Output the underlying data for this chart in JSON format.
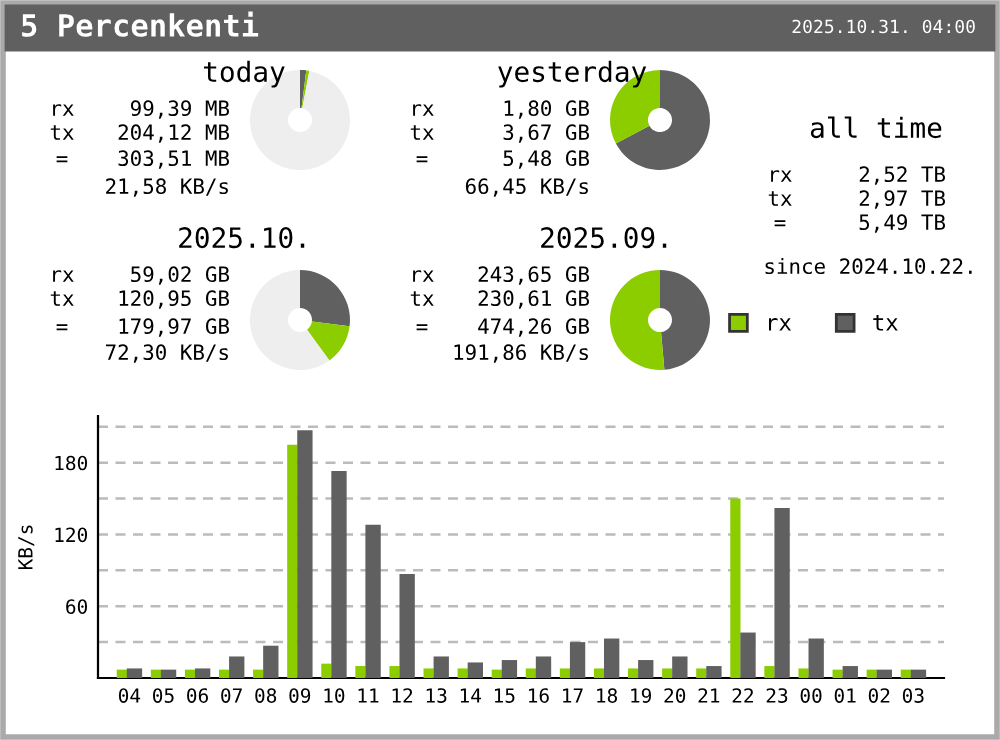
{
  "chart_data": [
    {
      "type": "other",
      "title": "5 Percenkenti",
      "annotations": [
        "2025.10.31. 04:00"
      ]
    },
    {
      "type": "donut",
      "title": "today",
      "categories": [
        null,
        null,
        null
      ],
      "values": [
        2,
        1,
        97
      ],
      "colors": [
        "#606060",
        "#8ccd00",
        "#eeeeee"
      ],
      "annotations": [
        "rx",
        "99,39 MB",
        "tx",
        "204,12 MB",
        "=",
        "303,51 MB",
        "21,58 KB/s"
      ]
    },
    {
      "type": "donut",
      "title": "yesterday",
      "categories": [
        null,
        null
      ],
      "values": [
        67.2,
        32.8
      ],
      "colors": [
        "#606060",
        "#8ccd00"
      ],
      "annotations": [
        "rx",
        "1,80 GB",
        "tx",
        "3,67 GB",
        "=",
        "5,48 GB",
        "66,45 KB/s"
      ]
    },
    {
      "type": "other",
      "title": "all time",
      "annotations": [
        "rx",
        "2,52 TB",
        "tx",
        "2,97 TB",
        "=",
        "5,49 TB",
        "since 2024.10.22."
      ]
    },
    {
      "type": "donut",
      "title": "2025.10.",
      "categories": [
        null,
        null,
        null
      ],
      "values": [
        27,
        13,
        60
      ],
      "colors": [
        "#606060",
        "#8ccd00",
        "#eeeeee"
      ],
      "annotations": [
        "rx",
        "59,02 GB",
        "tx",
        "120,95 GB",
        "=",
        "179,97 GB",
        "72,30 KB/s"
      ]
    },
    {
      "type": "donut",
      "title": "2025.09.",
      "categories": [
        null,
        null
      ],
      "values": [
        48.6,
        51.4
      ],
      "colors": [
        "#606060",
        "#8ccd00"
      ],
      "annotations": [
        "rx",
        "243,65 GB",
        "tx",
        "230,61 GB",
        "=",
        "474,26 GB",
        "191,86 KB/s"
      ]
    },
    {
      "type": "bar",
      "ylabel": "KB/s",
      "categories": [
        "04",
        "05",
        "06",
        "07",
        "08",
        "09",
        "10",
        "11",
        "12",
        "13",
        "14",
        "15",
        "16",
        "17",
        "18",
        "19",
        "20",
        "21",
        "22",
        "23",
        "00",
        "01",
        "02",
        "03"
      ],
      "series": [
        {
          "name": "rx",
          "color": "#8ccd00",
          "values": [
            7,
            7,
            7,
            7,
            7,
            195,
            12,
            10,
            10,
            8,
            8,
            7,
            8,
            8,
            8,
            8,
            8,
            8,
            150,
            10,
            8,
            7,
            7,
            7
          ]
        },
        {
          "name": "tx",
          "color": "#606060",
          "values": [
            8,
            7,
            8,
            18,
            27,
            207,
            173,
            128,
            87,
            18,
            13,
            15,
            18,
            30,
            33,
            15,
            18,
            10,
            38,
            142,
            33,
            10,
            7,
            7
          ]
        }
      ],
      "ylim": [
        0,
        219
      ],
      "yticks": [
        {
          "value": 30,
          "label": null
        },
        60,
        {
          "value": 90,
          "label": null
        },
        120,
        {
          "value": 150,
          "label": null
        },
        180,
        {
          "value": 210,
          "label": null
        }
      ],
      "grid": "y",
      "legend": "top right"
    }
  ]
}
